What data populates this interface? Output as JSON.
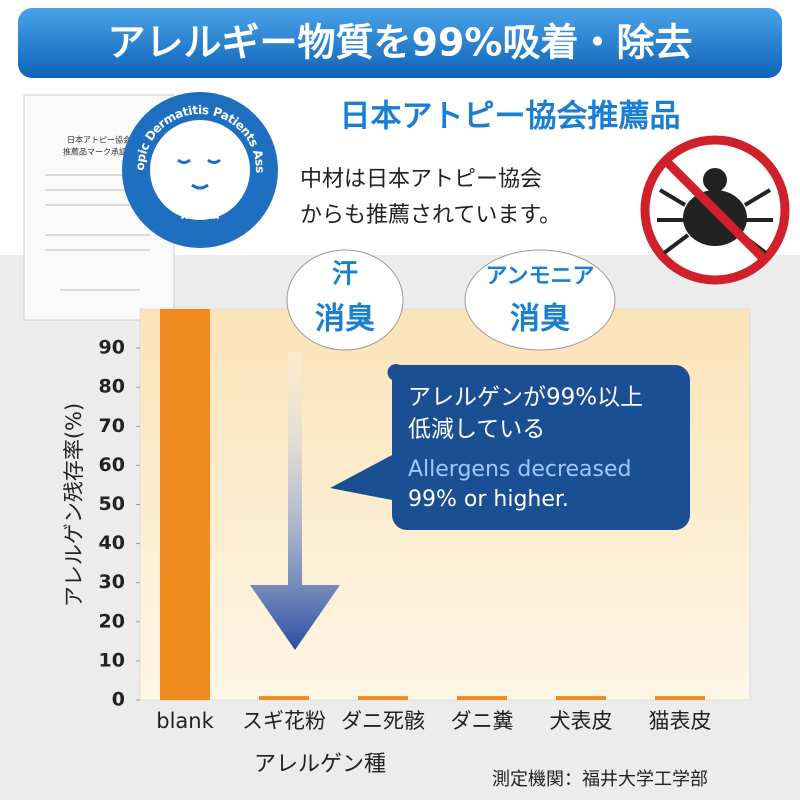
{
  "banner": "アレルギー物質を99%吸着・除去",
  "certificate": {
    "lines": [
      "日本アトピー協会",
      "推薦品マーク承認書"
    ]
  },
  "badge": {
    "ring_text": "Japan Atopic Dermatitis Patients Association",
    "label": "推薦品"
  },
  "heading": "日本アトピー協会推薦品",
  "description": [
    "中材は日本アトピー協会",
    "からも推薦されています。"
  ],
  "bubbles": [
    {
      "top": "汗",
      "bottom": "消臭"
    },
    {
      "top": "アンモニア",
      "bottom": "消臭"
    }
  ],
  "chart_data": {
    "type": "bar",
    "categories": [
      "blank",
      "スギ花粉",
      "ダニ死骸",
      "ダニ糞",
      "犬表皮",
      "猫表皮"
    ],
    "values": [
      100,
      1,
      1,
      1,
      1,
      1
    ],
    "color": "#ee8a1e",
    "ylim": [
      0,
      100
    ],
    "yticks": [
      0,
      10,
      20,
      30,
      40,
      50,
      60,
      70,
      80,
      90
    ],
    "y_label": "アレルゲン残存率(%)",
    "x_label": "アレルゲン種",
    "annotations": [
      "アレルゲンが99%以上",
      "低減している",
      "Allergens decreased",
      "99% or higher."
    ],
    "source": "測定機関：福井大学工学部"
  }
}
